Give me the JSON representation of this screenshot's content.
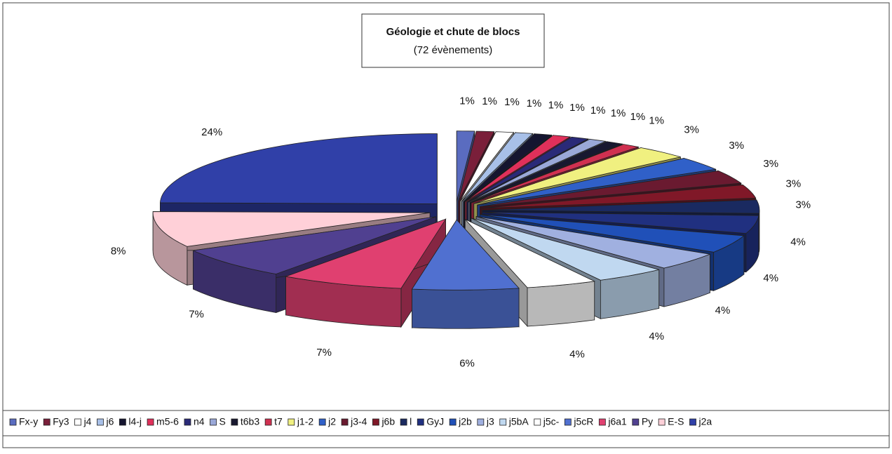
{
  "chart_data": {
    "type": "pie",
    "title": "Géologie et chute de blocs",
    "subtitle": "(72 évènements)",
    "categories": [
      "Fx-y",
      "Fy3",
      "j4",
      "j6",
      "l4-j",
      "m5-6",
      "n4",
      "S",
      "t6b3",
      "t7",
      "j1-2",
      "j2",
      "j3-4",
      "j6b",
      "l",
      "GyJ",
      "j2b",
      "j3",
      "j5bA",
      "j5c-",
      "j5cR",
      "j6a1",
      "Py",
      "E-S",
      "j2a"
    ],
    "values": [
      1,
      1,
      1,
      1,
      1,
      1,
      1,
      1,
      1,
      1,
      3,
      3,
      3,
      3,
      3,
      4,
      4,
      4,
      4,
      4,
      6,
      7,
      7,
      8,
      24
    ],
    "value_labels": [
      "1%",
      "1%",
      "1%",
      "1%",
      "1%",
      "1%",
      "1%",
      "1%",
      "1%",
      "1%",
      "3%",
      "3%",
      "3%",
      "3%",
      "3%",
      "4%",
      "4%",
      "4%",
      "4%",
      "4%",
      "6%",
      "7%",
      "7%",
      "8%",
      "24%"
    ],
    "colors": [
      "#5a6cc0",
      "#7a1f3a",
      "#ffffff",
      "#a8c0e8",
      "#151530",
      "#e0305a",
      "#2a2a78",
      "#9aa8d8",
      "#181830",
      "#d03050",
      "#f0f080",
      "#3060c8",
      "#6a1a30",
      "#801828",
      "#1a2a60",
      "#203080",
      "#2050b8",
      "#a0b0e0",
      "#c0d8f0",
      "#ffffff",
      "#5070d0",
      "#e04070",
      "#504090",
      "#ffd0d8",
      "#3040a8"
    ]
  }
}
